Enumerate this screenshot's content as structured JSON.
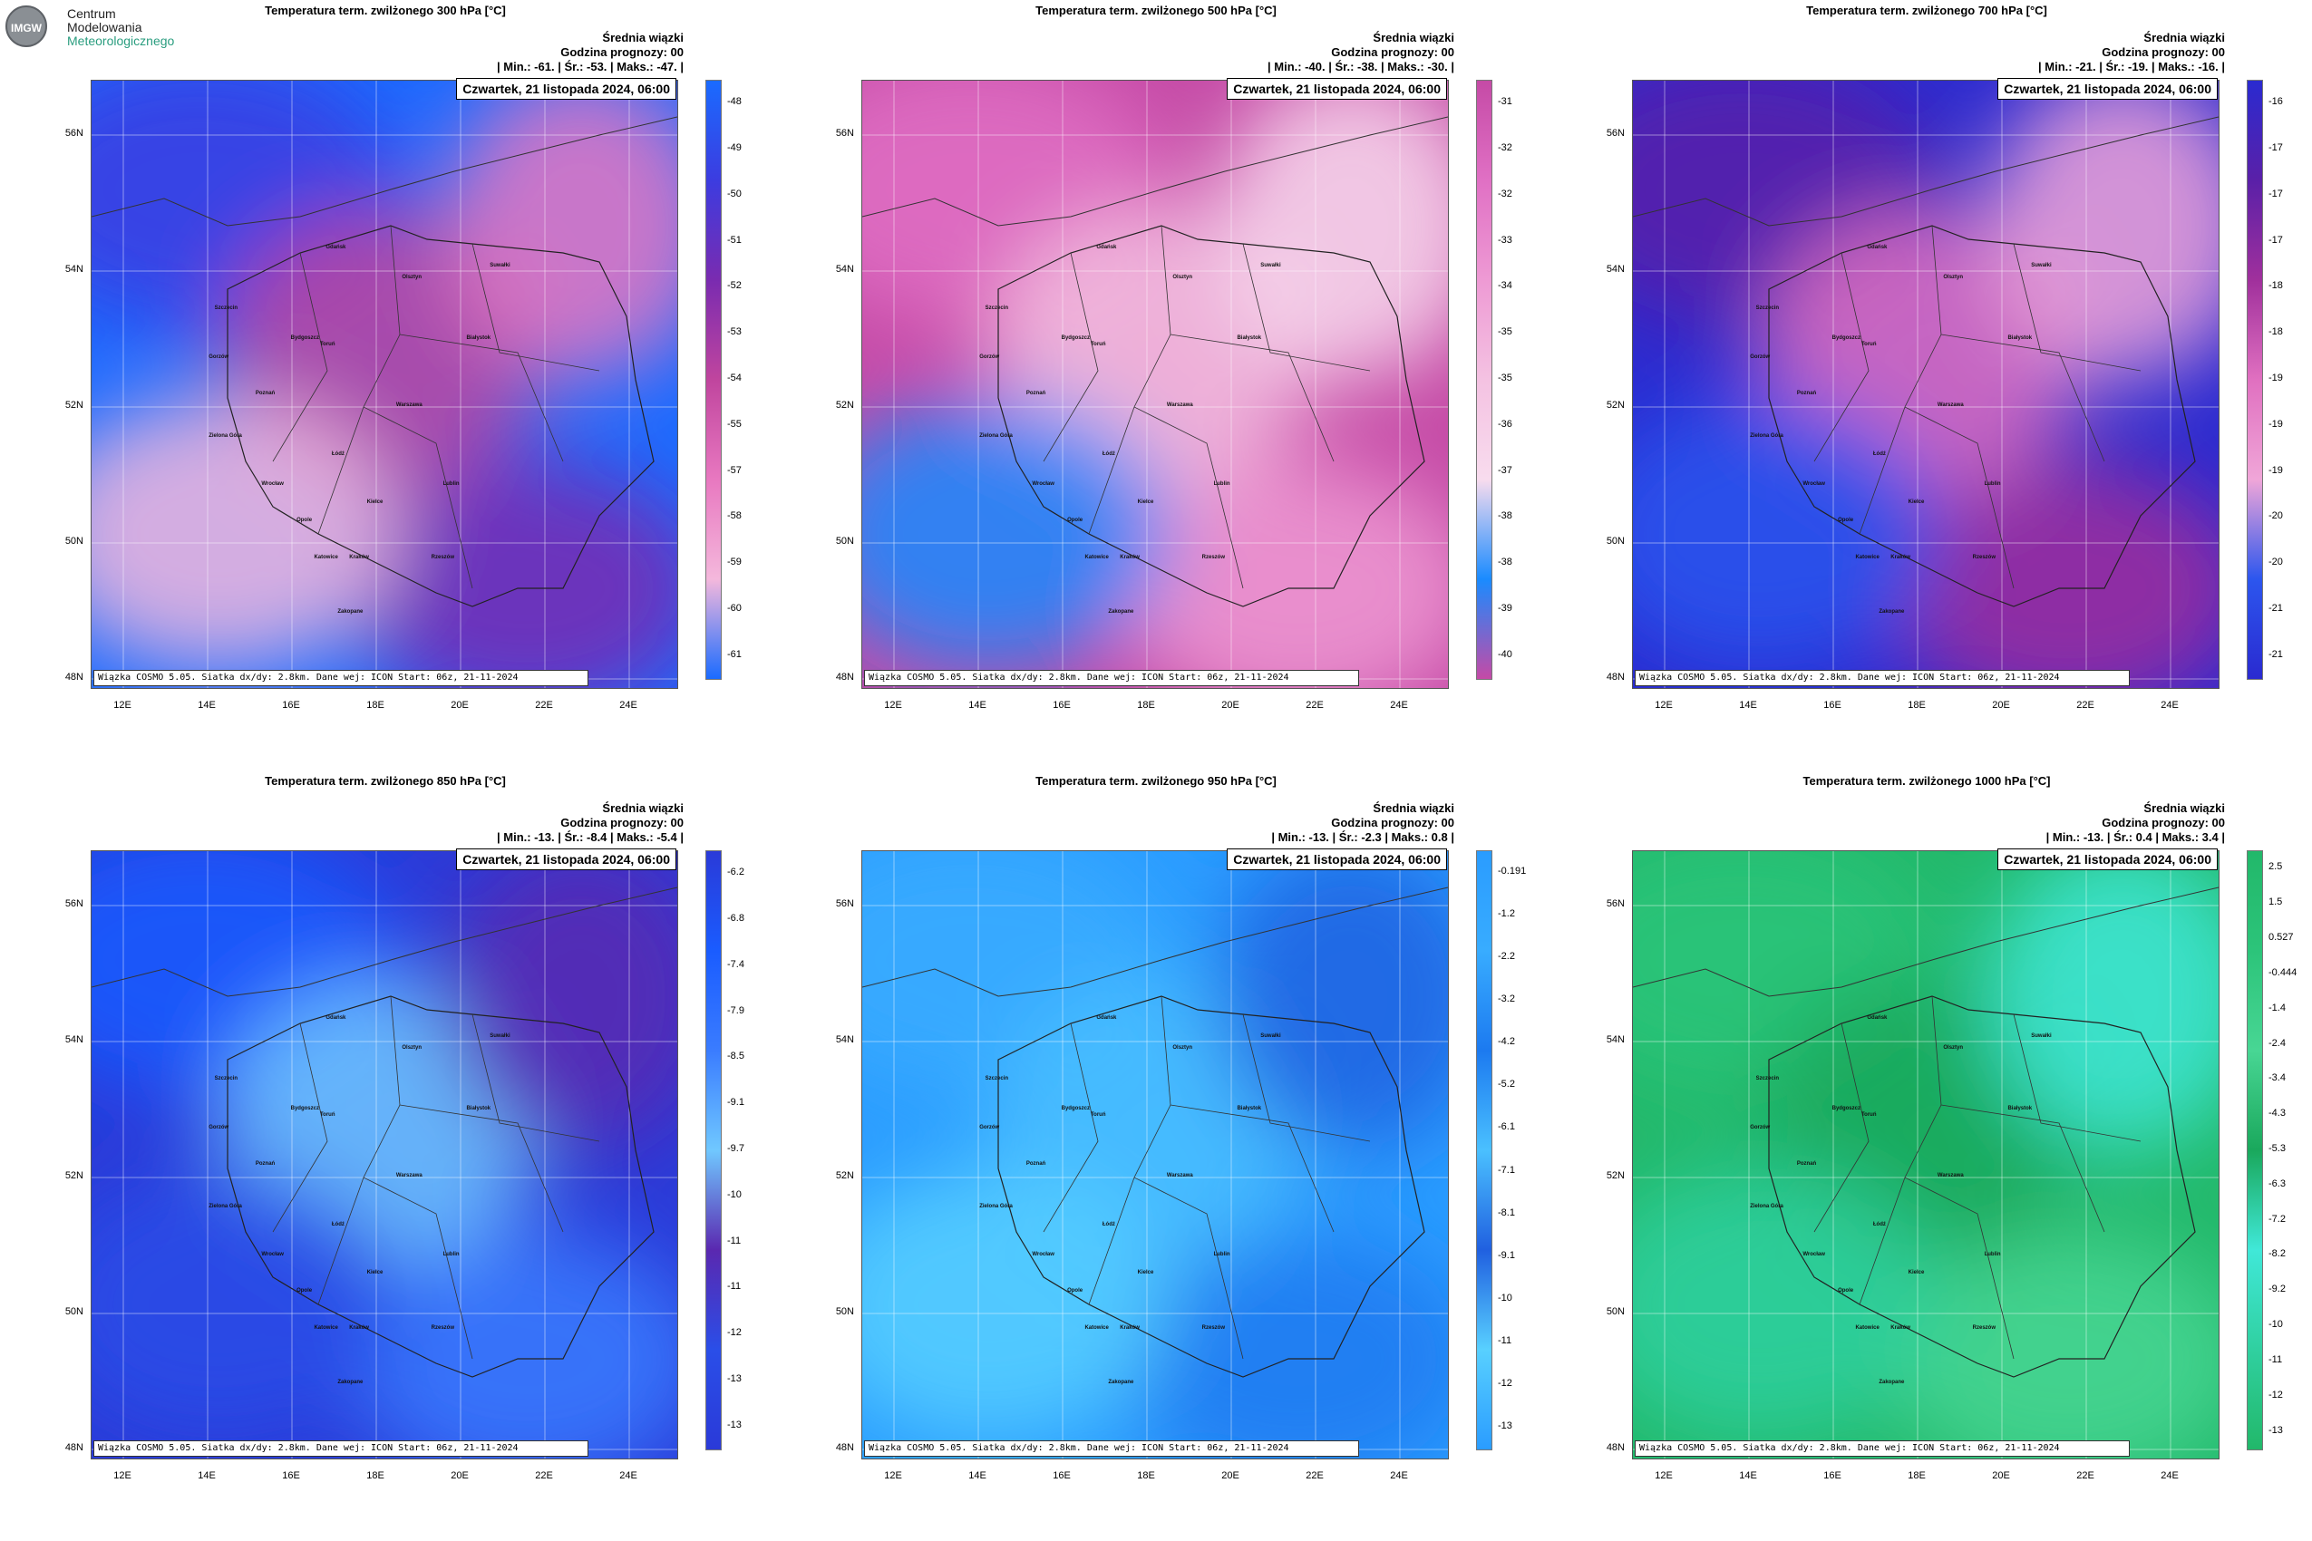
{
  "logo": {
    "line1": "Centrum",
    "line2": "Modelowania",
    "line3": "Meteorologicznego",
    "emblem": "IMGW"
  },
  "common": {
    "header": "Średnia wiązki",
    "forecast_hour": "Godzina prognozy: 00",
    "date": "Czwartek, 21 listopada 2024, 06:00",
    "source": "Wiązka COSMO 5.05. Siatka dx/dy: 2.8km. Dane wej: ICON Start: 06z, 21-11-2024",
    "lat_labels": [
      "56N",
      "54N",
      "52N",
      "50N",
      "48N"
    ],
    "lon_labels": [
      "12E",
      "14E",
      "16E",
      "18E",
      "20E",
      "22E",
      "24E"
    ]
  },
  "panels": [
    {
      "title": "Temperatura term. zwilżonego 300 hPa [°C]",
      "stats": "| Min.:   -61. | Śr.:   -53. | Maks.:   -47. |",
      "colorbar": [
        "-48",
        "-49",
        "-50",
        "-51",
        "-52",
        "-53",
        "-54",
        "-55",
        "-57",
        "-58",
        "-59",
        "-60",
        "-61"
      ],
      "palette": [
        "#1a6bff",
        "#3c3ce0",
        "#7a2bb0",
        "#c0459e",
        "#e878c0",
        "#f4b8dc"
      ]
    },
    {
      "title": "Temperatura term. zwilżonego 500 hPa [°C]",
      "stats": "| Min.:   -40. | Śr.:   -38. | Maks.:   -30. |",
      "colorbar": [
        "-31",
        "-32",
        "-32",
        "-33",
        "-34",
        "-35",
        "-35",
        "-36",
        "-37",
        "-38",
        "-38",
        "-39",
        "-40"
      ],
      "palette": [
        "#c54aa6",
        "#e070c4",
        "#ee9ad4",
        "#f4c2e2",
        "#f8dcee",
        "#1a8bff"
      ]
    },
    {
      "title": "Temperatura term. zwilżonego 700 hPa [°C]",
      "stats": "| Min.:   -21. | Śr.:   -19. | Maks.:   -16. |",
      "colorbar": [
        "-16",
        "-17",
        "-17",
        "-17",
        "-18",
        "-18",
        "-19",
        "-19",
        "-19",
        "-20",
        "-20",
        "-21",
        "-21"
      ],
      "palette": [
        "#2a2ad0",
        "#5a20a8",
        "#a0309c",
        "#e070c0",
        "#f0a6d8",
        "#2c56ee"
      ]
    },
    {
      "title": "Temperatura term. zwilżonego 850 hPa [°C]",
      "stats": "| Min.:   -13. | Śr.:   -8.4 | Maks.:   -5.4 |",
      "colorbar": [
        "-6.2",
        "-6.8",
        "-7.4",
        "-7.9",
        "-8.5",
        "-9.1",
        "-9.7",
        "-10",
        "-11",
        "-11",
        "-12",
        "-13",
        "-13"
      ],
      "palette": [
        "#2a3ad8",
        "#1a5cff",
        "#3a7cff",
        "#70c8ff",
        "#5a28b0",
        "#2a4ee8"
      ]
    },
    {
      "title": "Temperatura term. zwilżonego 950 hPa [°C]",
      "stats": "| Min.:   -13. | Śr.:   -2.3 | Maks.:   0.8 |",
      "colorbar": [
        "-0.191",
        "-1.2",
        "-2.2",
        "-3.2",
        "-4.2",
        "-5.2",
        "-6.1",
        "-7.1",
        "-8.1",
        "-9.1",
        "-10",
        "-11",
        "-12",
        "-13"
      ],
      "palette": [
        "#2a9cff",
        "#38acff",
        "#1c7af0",
        "#4ac0ff",
        "#2060e0",
        "#58d0ff"
      ]
    },
    {
      "title": "Temperatura term. zwilżonego 1000 hPa [°C]",
      "stats": "| Min.:   -13. | Śr.:   0.4 | Maks.:   3.4 |",
      "colorbar": [
        "2.5",
        "1.5",
        "0.527",
        "-0.444",
        "-1.4",
        "-2.4",
        "-3.4",
        "-4.3",
        "-5.3",
        "-6.3",
        "-7.2",
        "-8.2",
        "-9.2",
        "-10",
        "-11",
        "-12",
        "-13"
      ],
      "palette": [
        "#22b86a",
        "#2cc47a",
        "#48d694",
        "#1aa85c",
        "#40e8d8",
        "#30d0a0"
      ]
    }
  ],
  "cities": [
    "Gdańsk",
    "Olsztyn",
    "Suwałki",
    "Szczecin",
    "Bydgoszcz",
    "Toruń",
    "Białystok",
    "Gorzów",
    "Poznań",
    "Warszawa",
    "Zielona Góra",
    "Łódź",
    "Lublin",
    "Wrocław",
    "Opole",
    "Kielce",
    "Katowice",
    "Kraków",
    "Rzeszów",
    "Zakopane"
  ]
}
